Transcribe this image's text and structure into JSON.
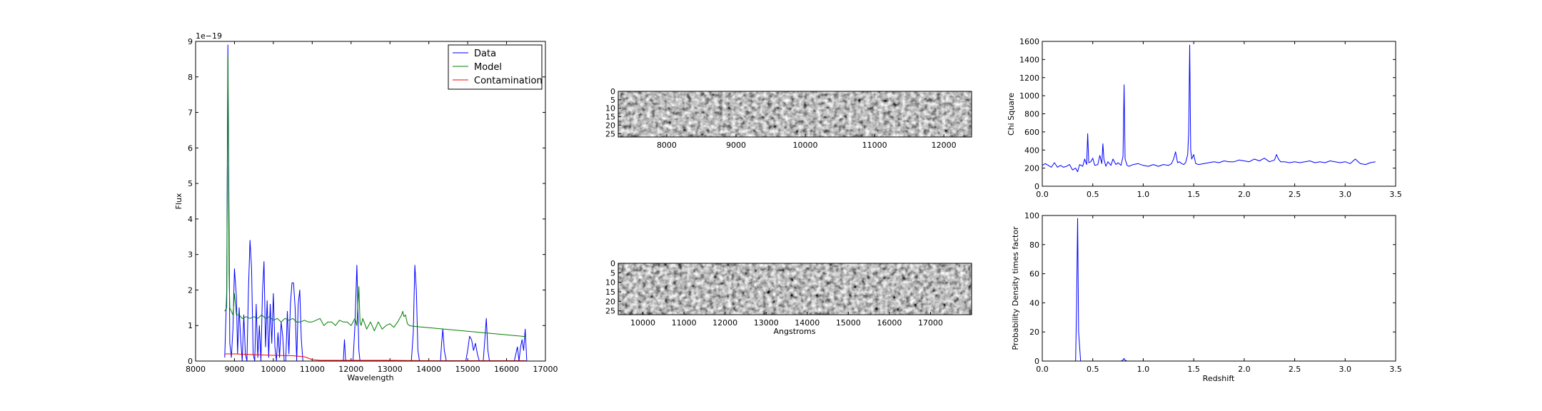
{
  "chart_data": [
    {
      "type": "line",
      "xlabel": "Wavelength",
      "ylabel": "Flux",
      "offset_text": "1e−19",
      "xlim": [
        8000,
        17000
      ],
      "ylim": [
        0,
        9
      ],
      "xticks": [
        8000,
        9000,
        10000,
        11000,
        12000,
        13000,
        14000,
        15000,
        16000,
        17000
      ],
      "yticks": [
        0,
        1,
        2,
        3,
        4,
        5,
        6,
        7,
        8,
        9
      ],
      "legend_position": "top-right",
      "series": [
        {
          "name": "Data",
          "color": "#0000ff",
          "x": [
            8750,
            8800,
            8830,
            8860,
            8880,
            8920,
            8960,
            9000,
            9050,
            9080,
            9120,
            9160,
            9200,
            9240,
            9280,
            9320,
            9360,
            9400,
            9440,
            9480,
            9520,
            9560,
            9600,
            9640,
            9680,
            9720,
            9760,
            9800,
            9840,
            9880,
            9920,
            9960,
            10000,
            10040,
            10080,
            10120,
            10160,
            10200,
            10240,
            10280,
            10320,
            10360,
            10400,
            10440,
            10480,
            10520,
            10560,
            10600,
            10640,
            10680,
            10720,
            10760,
            10800,
            10840,
            10880,
            10920,
            10960,
            11000,
            11040,
            11080,
            11120,
            11160,
            11200,
            11240,
            11280,
            11320,
            11360,
            11400,
            11450,
            11500,
            11550,
            11600,
            11650,
            11700,
            11750,
            11800,
            11830,
            11860,
            11900,
            11950,
            12000,
            12050,
            12100,
            12150,
            12200,
            12230,
            12260,
            12290,
            12320,
            12360,
            12400,
            12450,
            12500,
            12550,
            12600,
            12650,
            12700,
            12750,
            12800,
            12850,
            12900,
            12950,
            13000,
            13050,
            13100,
            13150,
            13200,
            13250,
            13300,
            13350,
            13400,
            13450,
            13500,
            13550,
            13600,
            13640,
            13680,
            13720,
            13760,
            13800,
            13850,
            13900,
            13950,
            14000,
            14050,
            14100,
            14150,
            14200,
            14250,
            14300,
            14330,
            14360,
            14400,
            14450,
            14500,
            14550,
            14600,
            14650,
            14700,
            14750,
            14800,
            14850,
            14900,
            14950,
            15000,
            15050,
            15100,
            15150,
            15200,
            15250,
            15300,
            15350,
            15400,
            15440,
            15480,
            15520,
            15560,
            15600,
            15650,
            15700,
            15750,
            15800,
            15850,
            15900,
            15950,
            16000,
            16050,
            16100,
            16150,
            16200,
            16240,
            16280,
            16320,
            16360,
            16400,
            16440,
            16480,
            16520
          ],
          "y": [
            0.1,
            2.0,
            8.9,
            4.0,
            0.5,
            0.1,
            0.9,
            2.6,
            1.8,
            0.2,
            1.5,
            0.6,
            0.0,
            1.3,
            0.2,
            0.0,
            2.0,
            3.4,
            2.6,
            0.2,
            0.0,
            1.6,
            0.1,
            1.0,
            0.0,
            1.9,
            2.8,
            0.4,
            1.7,
            0.1,
            1.6,
            0.5,
            1.9,
            0.4,
            0.0,
            0.8,
            0.1,
            1.1,
            0.7,
            0.0,
            0.0,
            1.4,
            0.2,
            1.6,
            2.2,
            2.2,
            1.5,
            0.0,
            1.6,
            2.0,
            0.6,
            0.0,
            0.0,
            0.0,
            0.0,
            0.0,
            0.0,
            0.0,
            0.0,
            0.0,
            0.0,
            0.0,
            0.0,
            0.0,
            0.0,
            0.0,
            0.0,
            0.0,
            0.0,
            0.0,
            0.0,
            0.0,
            0.0,
            0.0,
            0.0,
            0.0,
            0.6,
            0.0,
            0.0,
            0.0,
            0.0,
            0.0,
            1.0,
            2.7,
            0.3,
            0.0,
            0.0,
            0.0,
            0.0,
            0.0,
            0.0,
            0.0,
            0.0,
            0.0,
            0.0,
            0.0,
            0.0,
            0.0,
            0.0,
            0.0,
            0.0,
            0.0,
            0.0,
            0.0,
            0.0,
            0.0,
            0.0,
            0.0,
            0.0,
            0.0,
            0.0,
            0.0,
            0.0,
            0.0,
            0.8,
            2.7,
            2.0,
            0.3,
            0.0,
            0.0,
            0.0,
            0.0,
            0.0,
            0.0,
            0.0,
            0.0,
            0.0,
            0.0,
            0.0,
            0.0,
            0.5,
            0.9,
            0.3,
            0.0,
            0.0,
            0.0,
            0.0,
            0.0,
            0.0,
            0.0,
            0.0,
            0.0,
            0.0,
            0.0,
            0.3,
            0.7,
            0.6,
            0.3,
            0.5,
            0.2,
            0.0,
            0.0,
            0.0,
            0.6,
            1.2,
            0.3,
            0.0,
            0.0,
            0.0,
            0.0,
            0.0,
            0.0,
            0.0,
            0.0,
            0.0,
            0.0,
            0.0,
            0.0,
            0.0,
            0.0,
            0.2,
            0.4,
            0.0,
            0.4,
            0.6,
            0.3,
            0.9,
            0.0
          ]
        },
        {
          "name": "Model",
          "color": "#008000",
          "x": [
            8750,
            8800,
            8830,
            8860,
            8880,
            8920,
            8960,
            9000,
            9050,
            9080,
            9120,
            9200,
            9300,
            9400,
            9500,
            9600,
            9700,
            9800,
            9900,
            10000,
            10100,
            10200,
            10300,
            10400,
            10500,
            10600,
            10700,
            10800,
            10900,
            11000,
            11100,
            11200,
            11300,
            11400,
            11500,
            11600,
            11700,
            11800,
            11900,
            12000,
            12100,
            12150,
            12200,
            12230,
            12260,
            12300,
            12400,
            12500,
            12600,
            12700,
            12800,
            12900,
            13000,
            13100,
            13200,
            13300,
            13330,
            13360,
            13400,
            13450,
            13500,
            13600,
            13800,
            14000,
            14200,
            14400,
            14600,
            14800,
            15000,
            15200,
            15400,
            15600,
            15800,
            16000,
            16200,
            16400,
            16500
          ],
          "y": [
            1.4,
            1.5,
            8.6,
            2.5,
            1.5,
            1.4,
            1.3,
            1.9,
            1.3,
            1.3,
            1.3,
            1.2,
            1.25,
            1.2,
            1.25,
            1.2,
            1.3,
            1.2,
            1.25,
            1.15,
            1.2,
            1.1,
            1.2,
            1.15,
            1.2,
            1.1,
            1.1,
            1.15,
            1.1,
            1.1,
            1.15,
            1.2,
            1.0,
            1.1,
            1.1,
            1.0,
            1.15,
            1.1,
            1.1,
            1.0,
            1.2,
            1.0,
            2.1,
            1.1,
            1.0,
            1.2,
            0.9,
            1.1,
            0.85,
            1.1,
            0.9,
            1.0,
            1.05,
            0.95,
            1.1,
            1.3,
            1.4,
            1.25,
            1.3,
            1.05,
            1.0,
            0.98,
            0.96,
            0.94,
            0.92,
            0.9,
            0.88,
            0.86,
            0.84,
            0.82,
            0.8,
            0.78,
            0.76,
            0.74,
            0.72,
            0.7,
            0.69
          ]
        },
        {
          "name": "Contamination",
          "color": "#ff0000",
          "x": [
            8750,
            9000,
            9500,
            10000,
            10500,
            10800,
            10900,
            11000,
            11200,
            11500,
            12000,
            13000,
            14000,
            15000,
            16000,
            16500
          ],
          "y": [
            0.2,
            0.2,
            0.18,
            0.16,
            0.15,
            0.12,
            0.08,
            0.04,
            0.02,
            0.02,
            0.02,
            0.02,
            0.01,
            0.01,
            0.01,
            0.01
          ]
        }
      ]
    },
    {
      "type": "heatmap",
      "colormap": "gray",
      "xlabel": "",
      "xlim": [
        7300,
        12400
      ],
      "xticks": [
        8000,
        9000,
        10000,
        11000,
        12000
      ],
      "ylim": [
        27,
        0
      ],
      "yticks": [
        0,
        5,
        10,
        15,
        20,
        25
      ]
    },
    {
      "type": "heatmap",
      "colormap": "gray",
      "xlabel": "Angstroms",
      "xlim": [
        9400,
        18000
      ],
      "xticks": [
        10000,
        11000,
        12000,
        13000,
        14000,
        15000,
        16000,
        17000
      ],
      "ylim": [
        27,
        0
      ],
      "yticks": [
        0,
        5,
        10,
        15,
        20,
        25
      ]
    },
    {
      "type": "line",
      "xlabel": "",
      "ylabel": "Chi Square",
      "xlim": [
        0.0,
        3.5
      ],
      "ylim": [
        0,
        1600
      ],
      "xticks": [
        0.0,
        0.5,
        1.0,
        1.5,
        2.0,
        2.5,
        3.0,
        3.5
      ],
      "xtick_labels": [
        "0.0",
        "0.5",
        "1.0",
        "1.5",
        "2.0",
        "2.5",
        "3.0",
        "3.5"
      ],
      "yticks": [
        0,
        200,
        400,
        600,
        800,
        1000,
        1200,
        1400,
        1600
      ],
      "series": [
        {
          "color": "#0000ff",
          "x": [
            0.0,
            0.03,
            0.06,
            0.09,
            0.12,
            0.15,
            0.18,
            0.21,
            0.24,
            0.27,
            0.3,
            0.33,
            0.35,
            0.37,
            0.4,
            0.42,
            0.44,
            0.45,
            0.46,
            0.48,
            0.5,
            0.52,
            0.55,
            0.57,
            0.59,
            0.6,
            0.61,
            0.62,
            0.63,
            0.65,
            0.68,
            0.7,
            0.73,
            0.75,
            0.78,
            0.8,
            0.81,
            0.82,
            0.84,
            0.86,
            0.9,
            0.95,
            1.0,
            1.05,
            1.1,
            1.15,
            1.2,
            1.25,
            1.28,
            1.3,
            1.32,
            1.34,
            1.36,
            1.38,
            1.4,
            1.42,
            1.44,
            1.45,
            1.46,
            1.47,
            1.48,
            1.5,
            1.52,
            1.55,
            1.6,
            1.65,
            1.7,
            1.75,
            1.8,
            1.85,
            1.9,
            1.95,
            2.0,
            2.05,
            2.1,
            2.15,
            2.2,
            2.25,
            2.3,
            2.32,
            2.34,
            2.36,
            2.4,
            2.45,
            2.5,
            2.55,
            2.6,
            2.65,
            2.7,
            2.75,
            2.8,
            2.85,
            2.9,
            2.95,
            3.0,
            3.05,
            3.1,
            3.15,
            3.2,
            3.25,
            3.3
          ],
          "y": [
            230,
            250,
            230,
            210,
            260,
            210,
            230,
            210,
            220,
            240,
            180,
            200,
            160,
            240,
            220,
            300,
            240,
            580,
            260,
            270,
            310,
            230,
            240,
            340,
            250,
            470,
            300,
            260,
            220,
            270,
            230,
            300,
            240,
            260,
            230,
            330,
            1120,
            300,
            230,
            220,
            240,
            250,
            230,
            220,
            240,
            220,
            240,
            230,
            250,
            300,
            380,
            260,
            270,
            250,
            240,
            260,
            350,
            600,
            1560,
            400,
            300,
            350,
            250,
            240,
            250,
            260,
            270,
            260,
            280,
            270,
            270,
            290,
            280,
            270,
            300,
            280,
            310,
            270,
            290,
            350,
            300,
            270,
            270,
            260,
            270,
            260,
            270,
            280,
            260,
            270,
            260,
            280,
            270,
            260,
            270,
            250,
            300,
            250,
            240,
            260,
            270
          ]
        }
      ]
    },
    {
      "type": "line",
      "xlabel": "Redshift",
      "ylabel": "Probability Density times factor",
      "xlim": [
        0.0,
        3.5
      ],
      "ylim": [
        0,
        100
      ],
      "xticks": [
        0.0,
        0.5,
        1.0,
        1.5,
        2.0,
        2.5,
        3.0,
        3.5
      ],
      "xtick_labels": [
        "0.0",
        "0.5",
        "1.0",
        "1.5",
        "2.0",
        "2.5",
        "3.0",
        "3.5"
      ],
      "yticks": [
        0,
        20,
        40,
        60,
        80,
        100
      ],
      "series": [
        {
          "color": "#0000ff",
          "x": [
            0.0,
            0.3,
            0.33,
            0.34,
            0.35,
            0.36,
            0.38,
            0.4,
            0.78,
            0.8,
            0.81,
            0.82,
            0.84,
            1.0,
            2.0,
            3.3
          ],
          "y": [
            0,
            0,
            0,
            40,
            98,
            20,
            0,
            0,
            0,
            0.8,
            1.8,
            0.5,
            0,
            0,
            0,
            0
          ]
        }
      ]
    }
  ]
}
